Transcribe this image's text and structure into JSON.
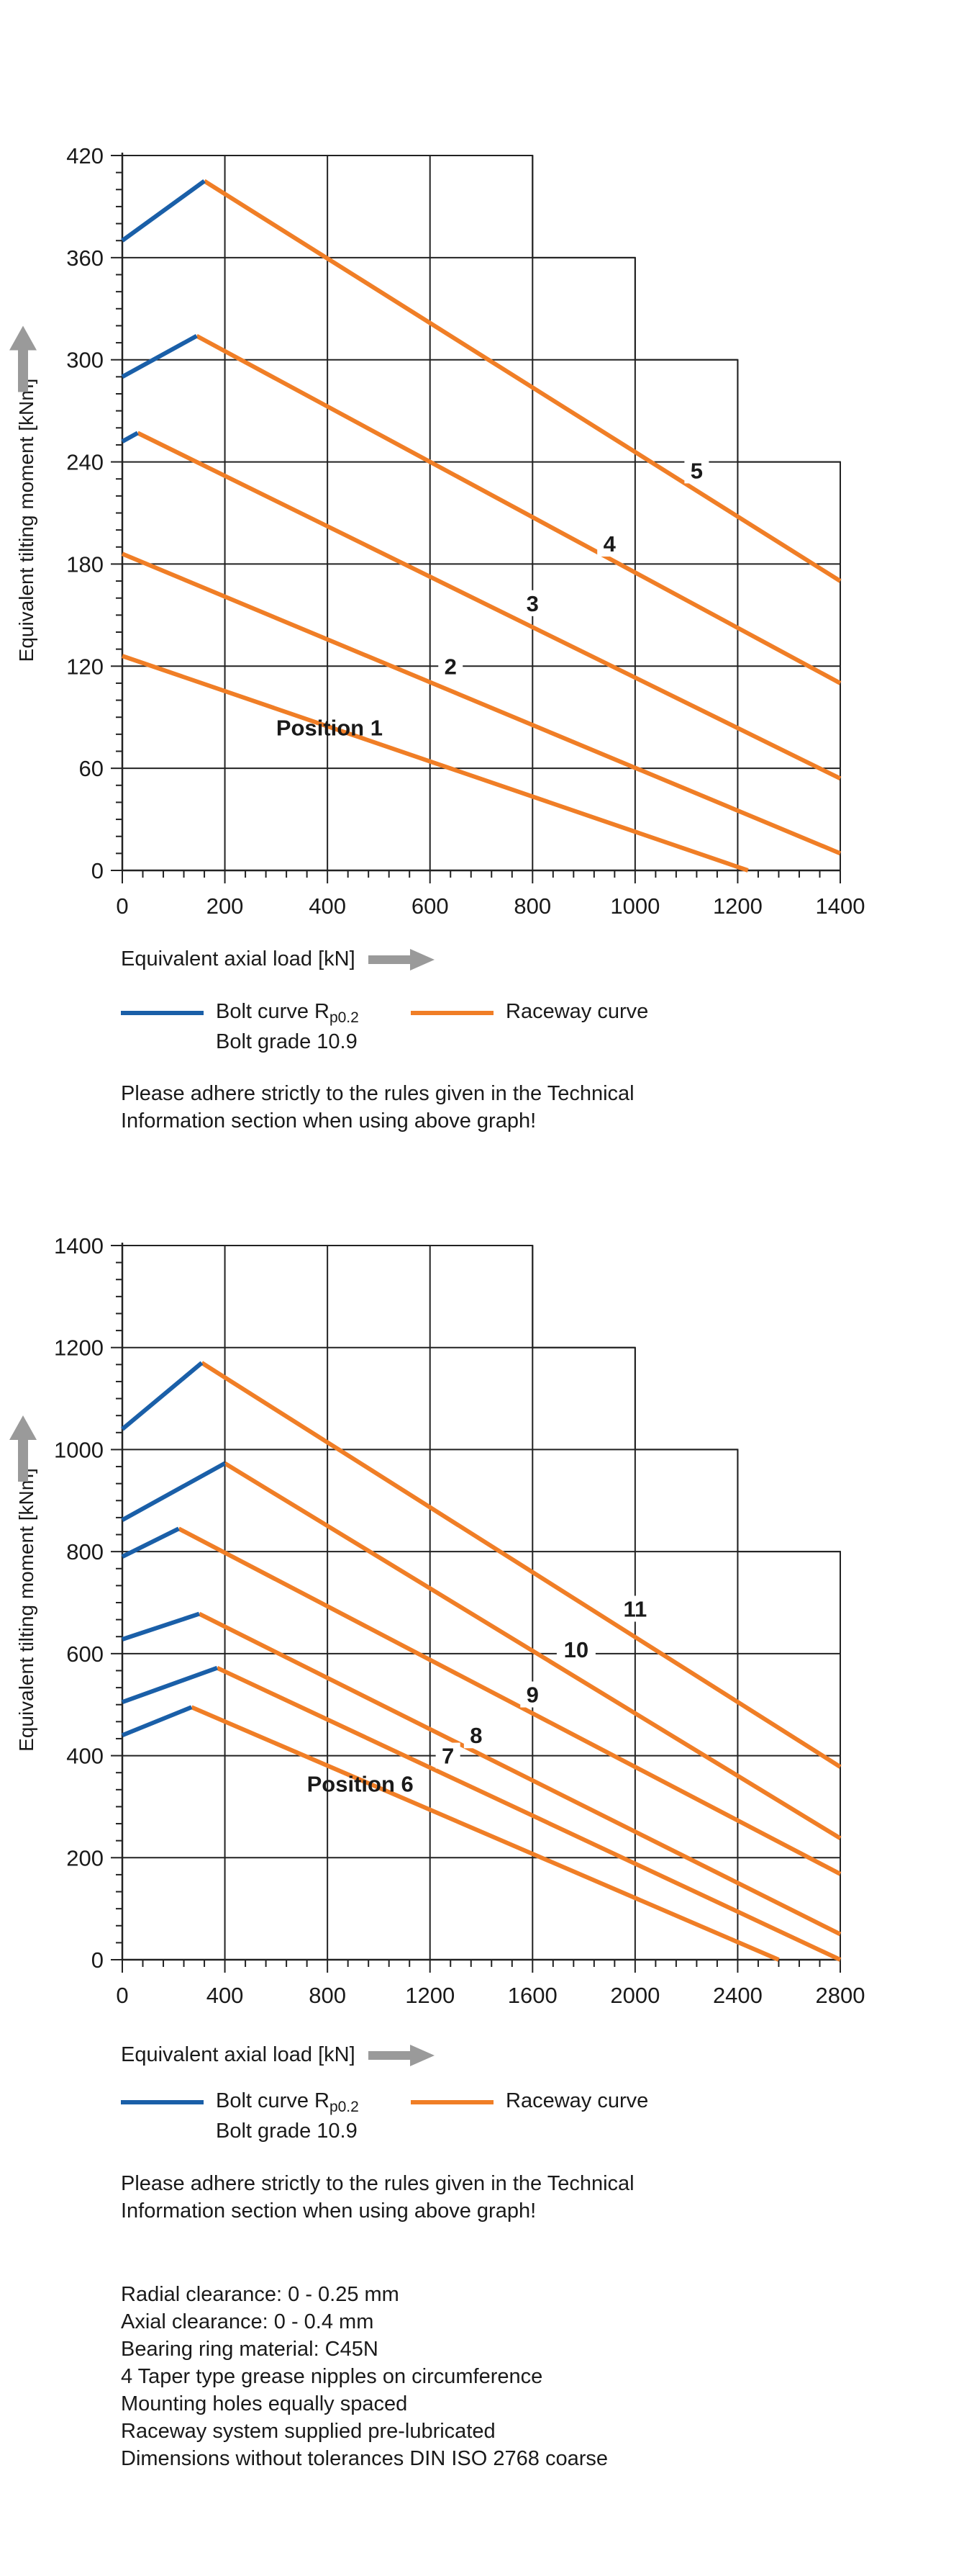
{
  "chart_data": [
    {
      "type": "line",
      "title": "",
      "xlabel": "Equivalent axial load [kN]",
      "ylabel": "Equivalent tilting moment [kNm]",
      "xlim": [
        0,
        1400
      ],
      "ylim": [
        0,
        420
      ],
      "xticks": [
        0,
        200,
        400,
        600,
        800,
        1000,
        1200,
        1400
      ],
      "yticks": [
        0,
        60,
        120,
        180,
        240,
        300,
        360,
        420
      ],
      "grid_outline": [
        [
          0,
          420
        ],
        [
          800,
          420
        ],
        [
          800,
          360
        ],
        [
          1000,
          360
        ],
        [
          1000,
          300
        ],
        [
          1200,
          300
        ],
        [
          1200,
          240
        ],
        [
          1400,
          240
        ],
        [
          1400,
          0
        ]
      ],
      "grid_v": [
        [
          200,
          420
        ],
        [
          400,
          420
        ],
        [
          600,
          420
        ],
        [
          800,
          420
        ],
        [
          1000,
          360
        ],
        [
          1200,
          300
        ]
      ],
      "grid_h": [
        [
          60,
          1400
        ],
        [
          120,
          1400
        ],
        [
          180,
          1400
        ],
        [
          240,
          1400
        ],
        [
          300,
          1200
        ],
        [
          360,
          1000
        ]
      ],
      "legend": {
        "bolt_label": "Bolt curve  R",
        "bolt_sub": "p0.2",
        "bolt_grade": "Bolt grade 10.9",
        "raceway_label": "Raceway curve",
        "bolt_color": "#1a5fa8",
        "raceway_color": "#f07e26"
      },
      "note": [
        "Please adhere strictly to the rules given in the Technical",
        "Information section when using above graph!"
      ],
      "series": [
        {
          "name": "Position 1",
          "raceway": [
            [
              0,
              126
            ],
            [
              1220,
              0
            ]
          ],
          "label_at": [
            300,
            84
          ]
        },
        {
          "name": "2",
          "raceway": [
            [
              0,
              186
            ],
            [
              1400,
              10
            ]
          ],
          "label_at": [
            640,
            120
          ]
        },
        {
          "name": "3",
          "bolt": [
            [
              0,
              252
            ],
            [
              30,
              257
            ]
          ],
          "raceway": [
            [
              30,
              257
            ],
            [
              1400,
              54
            ]
          ],
          "label_at": [
            800,
            157
          ]
        },
        {
          "name": "4",
          "bolt": [
            [
              0,
              290
            ],
            [
              145,
              314
            ]
          ],
          "raceway": [
            [
              145,
              314
            ],
            [
              1400,
              110
            ]
          ],
          "label_at": [
            950,
            192
          ]
        },
        {
          "name": "5",
          "bolt": [
            [
              0,
              370
            ],
            [
              160,
              405
            ]
          ],
          "raceway": [
            [
              160,
              405
            ],
            [
              1400,
              170
            ]
          ],
          "label_at": [
            1120,
            235
          ]
        }
      ]
    },
    {
      "type": "line",
      "title": "",
      "xlabel": "Equivalent axial load [kN]",
      "ylabel": "Equivalent tilting moment [kNm]",
      "xlim": [
        0,
        2800
      ],
      "ylim": [
        0,
        1400
      ],
      "xticks": [
        0,
        400,
        800,
        1200,
        1600,
        2000,
        2400,
        2800
      ],
      "yticks": [
        0,
        200,
        400,
        600,
        800,
        1000,
        1200,
        1400
      ],
      "grid_outline": [
        [
          0,
          1400
        ],
        [
          1600,
          1400
        ],
        [
          1600,
          1200
        ],
        [
          2000,
          1200
        ],
        [
          2000,
          1000
        ],
        [
          2400,
          1000
        ],
        [
          2400,
          800
        ],
        [
          2800,
          800
        ],
        [
          2800,
          0
        ]
      ],
      "grid_v": [
        [
          400,
          1400
        ],
        [
          800,
          1400
        ],
        [
          1200,
          1400
        ],
        [
          1600,
          1400
        ],
        [
          2000,
          1200
        ],
        [
          2400,
          1000
        ]
      ],
      "grid_h": [
        [
          200,
          2800
        ],
        [
          400,
          2800
        ],
        [
          600,
          2800
        ],
        [
          800,
          2800
        ],
        [
          1000,
          2400
        ],
        [
          1200,
          2000
        ]
      ],
      "legend": {
        "bolt_label": "Bolt curve  R",
        "bolt_sub": "p0.2",
        "bolt_grade": "Bolt grade 10.9",
        "raceway_label": "Raceway curve",
        "bolt_color": "#1a5fa8",
        "raceway_color": "#f07e26"
      },
      "note": [
        "Please adhere strictly to the rules given in the Technical",
        "Information section when using above graph!"
      ],
      "series": [
        {
          "name": "Position  6",
          "bolt": [
            [
              0,
              440
            ],
            [
              270,
              495
            ]
          ],
          "raceway": [
            [
              270,
              495
            ],
            [
              2560,
              0
            ]
          ],
          "label_at": [
            720,
            345
          ]
        },
        {
          "name": "7",
          "bolt": [
            [
              0,
              505
            ],
            [
              370,
              572
            ]
          ],
          "raceway": [
            [
              370,
              572
            ],
            [
              2800,
              0
            ]
          ],
          "label_at": [
            1270,
            400
          ]
        },
        {
          "name": "8",
          "bolt": [
            [
              0,
              628
            ],
            [
              300,
              678
            ]
          ],
          "raceway": [
            [
              300,
              678
            ],
            [
              2800,
              50
            ]
          ],
          "label_at": [
            1380,
            440
          ]
        },
        {
          "name": "9",
          "bolt": [
            [
              0,
              790
            ],
            [
              220,
              845
            ]
          ],
          "raceway": [
            [
              220,
              845
            ],
            [
              2800,
              168
            ]
          ],
          "label_at": [
            1600,
            520
          ]
        },
        {
          "name": "10",
          "bolt": [
            [
              0,
              862
            ],
            [
              400,
              973
            ]
          ],
          "raceway": [
            [
              400,
              973
            ],
            [
              2800,
              238
            ]
          ],
          "label_at": [
            1770,
            608
          ]
        },
        {
          "name": "11",
          "bolt": [
            [
              0,
              1040
            ],
            [
              310,
              1170
            ]
          ],
          "raceway": [
            [
              310,
              1170
            ],
            [
              2800,
              378
            ]
          ],
          "label_at": [
            2000,
            688
          ]
        }
      ]
    }
  ],
  "specs": [
    "Radial clearance: 0 - 0.25 mm",
    "Axial clearance: 0 - 0.4  mm",
    "Bearing ring material: C45N",
    "4 Taper type grease nipples on circumference",
    "Mounting holes equally spaced",
    "Raceway system supplied pre-lubricated",
    "Dimensions without tolerances DIN ISO 2768 coarse"
  ]
}
